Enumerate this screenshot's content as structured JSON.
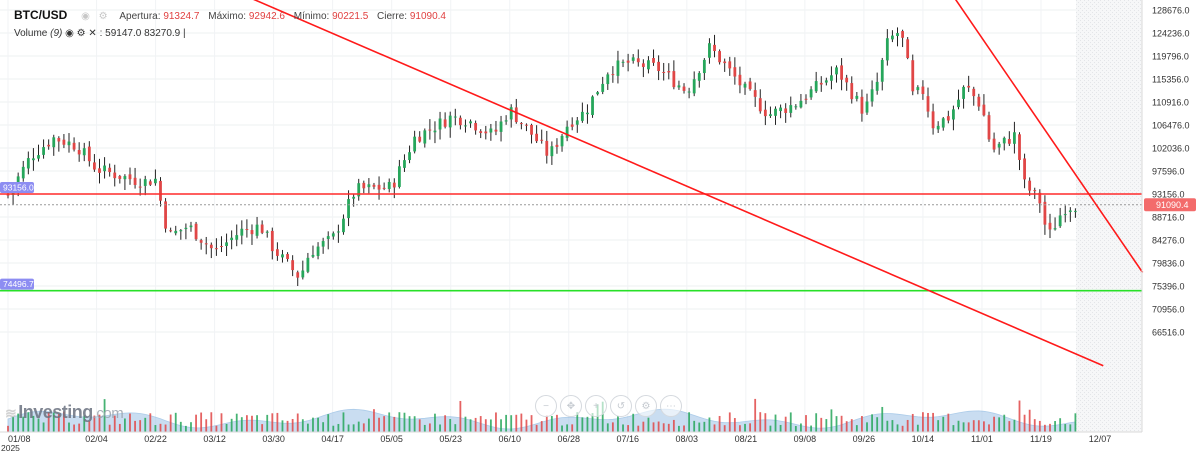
{
  "header": {
    "symbol": "BTC/USD",
    "open_label": "Apertura:",
    "open_value": "91324.7",
    "high_label": "Máximo:",
    "high_value": "92942.6",
    "low_label": "Mínimo:",
    "low_value": "90221.5",
    "close_label": "Cierre:",
    "close_value": "91090.4",
    "volume_label": "Volume",
    "volume_param": "(9)",
    "volume_value_1": "59147.0",
    "volume_value_2": "83270.9"
  },
  "brand": {
    "name": "Investing",
    "suffix": ".com"
  },
  "toolbar": {
    "icons": [
      "zoom-out-icon",
      "move-icon",
      "zoom-in-icon",
      "reset-icon",
      "settings-icon",
      "more-icon"
    ]
  },
  "colors": {
    "up": "#26a65b",
    "down": "#e04646",
    "resistance": "#ff2a2a",
    "support": "#28e028",
    "channel": "#ff1a1a",
    "volume_area": "#9ec2e6"
  },
  "chart_data": {
    "type": "candlestick",
    "y_ticks": [
      "128676.0",
      "124236.0",
      "119796.0",
      "115356.0",
      "110916.0",
      "106476.0",
      "102036.0",
      "97596.0",
      "93156.0",
      "88716.0",
      "84276.0",
      "79836.0",
      "75396.0",
      "70956.0",
      "66516.0"
    ],
    "ylim": [
      64000,
      130000
    ],
    "x_ticks": [
      "01/08",
      "02/04",
      "02/22",
      "03/12",
      "03/30",
      "04/17",
      "05/05",
      "05/23",
      "06/10",
      "06/28",
      "07/16",
      "08/03",
      "08/21",
      "09/08",
      "09/26",
      "10/14",
      "11/01",
      "11/19",
      "12/07"
    ],
    "year_label": "2025",
    "current_price": "91090.4",
    "horizontal_lines": [
      {
        "value": 93156.0,
        "label": "93156.0",
        "color": "red"
      },
      {
        "value": 74496.7,
        "label": "74496.7",
        "color": "green"
      }
    ],
    "price_path": [
      [
        "01/08",
        93000
      ],
      [
        "01/15",
        100500
      ],
      [
        "01/22",
        104000
      ],
      [
        "01/29",
        102500
      ],
      [
        "02/04",
        98000
      ],
      [
        "02/12",
        96500
      ],
      [
        "02/18",
        95500
      ],
      [
        "02/22",
        96000
      ],
      [
        "02/26",
        85000
      ],
      [
        "03/04",
        87000
      ],
      [
        "03/12",
        82000
      ],
      [
        "03/20",
        86000
      ],
      [
        "03/26",
        87000
      ],
      [
        "03/30",
        82500
      ],
      [
        "04/07",
        77000
      ],
      [
        "04/10",
        82000
      ],
      [
        "04/17",
        84500
      ],
      [
        "04/24",
        94000
      ],
      [
        "05/05",
        94500
      ],
      [
        "05/12",
        104000
      ],
      [
        "05/23",
        108000
      ],
      [
        "05/28",
        107500
      ],
      [
        "06/05",
        104500
      ],
      [
        "06/10",
        109500
      ],
      [
        "06/17",
        104500
      ],
      [
        "06/22",
        100500
      ],
      [
        "06/28",
        107000
      ],
      [
        "07/03",
        109000
      ],
      [
        "07/10",
        117000
      ],
      [
        "07/16",
        118500
      ],
      [
        "07/25",
        117500
      ],
      [
        "08/03",
        113000
      ],
      [
        "08/10",
        121500
      ],
      [
        "08/14",
        118500
      ],
      [
        "08/21",
        113000
      ],
      [
        "08/28",
        108500
      ],
      [
        "09/05",
        110500
      ],
      [
        "09/08",
        112000
      ],
      [
        "09/18",
        117000
      ],
      [
        "09/26",
        109000
      ],
      [
        "09/30",
        114500
      ],
      [
        "10/03",
        122000
      ],
      [
        "10/06",
        124500
      ],
      [
        "10/09",
        121500
      ],
      [
        "10/10",
        112000
      ],
      [
        "10/14",
        113000
      ],
      [
        "10/17",
        106500
      ],
      [
        "10/22",
        108000
      ],
      [
        "10/27",
        114000
      ],
      [
        "11/01",
        110000
      ],
      [
        "11/04",
        101500
      ],
      [
        "11/11",
        104500
      ],
      [
        "11/14",
        95000
      ],
      [
        "11/19",
        91500
      ],
      [
        "11/21",
        84500
      ],
      [
        "11/26",
        90500
      ],
      [
        "11/30",
        91090
      ]
    ],
    "channel_lines": [
      {
        "from": [
          "12/25 (2024)",
          155000
        ],
        "to": [
          "12/08",
          60000
        ]
      },
      {
        "from": [
          "10/02",
          151000
        ],
        "to": [
          "12/20",
          78000
        ]
      }
    ]
  }
}
